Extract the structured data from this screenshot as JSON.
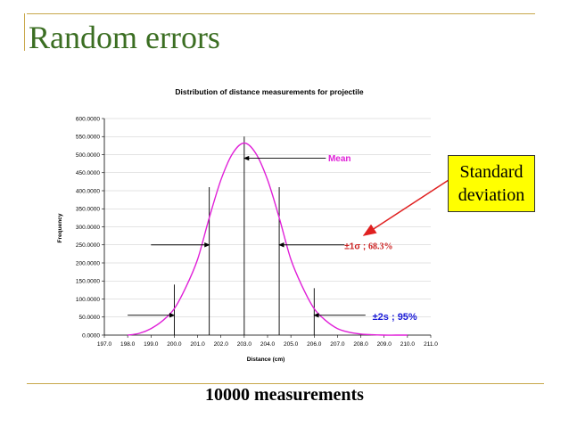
{
  "slide": {
    "title": "Random errors",
    "footer": "10000 measurements",
    "callout": {
      "line1": "Standard",
      "line2": "deviation"
    }
  },
  "chart_data": {
    "type": "area",
    "title": "Distribution of distance measurements for projectile",
    "xlabel": "Distance (cm)",
    "ylabel": "Frequency",
    "xlim": [
      197.0,
      211.0
    ],
    "ylim": [
      0,
      600
    ],
    "x_ticks": [
      "197.0",
      "198.0",
      "199.0",
      "200.0",
      "201.0",
      "202.0",
      "203.0",
      "204.0",
      "205.0",
      "206.0",
      "207.0",
      "208.0",
      "209.0",
      "210.0",
      "211.0"
    ],
    "y_ticks": [
      "0.0000",
      "50.0000",
      "100.0000",
      "150.0000",
      "200.0000",
      "250.0000",
      "300.0000",
      "350.0000",
      "400.0000",
      "450.0000",
      "500.0000",
      "550.0000",
      "600.0000"
    ],
    "series": [
      {
        "color": "#e020d8",
        "x": [
          198.0,
          198.5,
          199.0,
          199.5,
          200.0,
          200.5,
          201.0,
          201.5,
          202.0,
          202.5,
          203.0,
          203.5,
          204.0,
          204.5,
          205.0,
          205.5,
          206.0,
          206.5,
          207.0,
          207.5,
          208.0,
          208.5,
          209.0,
          209.5,
          210.0
        ],
        "y": [
          0,
          5,
          18,
          40,
          73,
          133,
          210,
          325,
          430,
          503,
          532,
          503,
          430,
          325,
          210,
          133,
          73,
          40,
          18,
          8,
          3,
          1,
          0,
          0,
          0
        ]
      }
    ],
    "vertical_markers": [
      {
        "x": 203.0,
        "height": 550
      },
      {
        "x": 201.5,
        "height": 410
      },
      {
        "x": 204.5,
        "height": 410
      },
      {
        "x": 200.0,
        "height": 140
      },
      {
        "x": 206.0,
        "height": 130
      }
    ],
    "annotations": [
      {
        "text": "Mean",
        "color": "#e020d8",
        "at_x": 206.6,
        "at_y": 482,
        "arrow_from_x": 206.5,
        "arrow_to_x": 203.0,
        "arrow_y": 490
      },
      {
        "text": "±1σ ; ",
        "text2": "68.3%",
        "color": "#cc2222",
        "at_x": 207.3,
        "at_y": 238,
        "arrow1_from_x": 199.0,
        "arrow1_to_x": 201.5,
        "arrow2_from_x": 207.3,
        "arrow2_to_x": 204.5,
        "arrow_y": 250
      },
      {
        "text": "±2s ; 95%",
        "color": "#1a1ad8",
        "at_x": 208.5,
        "at_y": 42,
        "arrow1_from_x": 198.0,
        "arrow1_to_x": 200.0,
        "arrow2_from_x": 208.2,
        "arrow2_to_x": 206.0,
        "arrow_y": 55
      }
    ]
  }
}
